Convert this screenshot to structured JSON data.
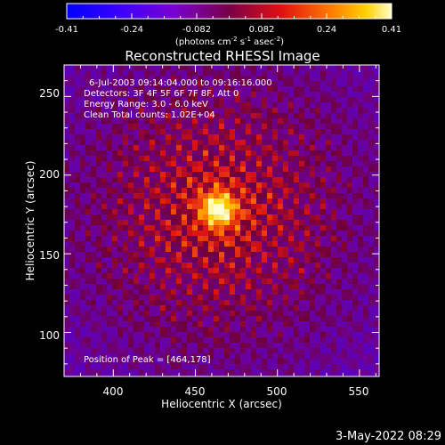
{
  "colorbar": {
    "ticks": [
      "-0.41",
      "-0.24",
      "-0.082",
      "0.082",
      "0.24",
      "0.41"
    ],
    "units_prefix": "(photons cm",
    "units_exp1": "-2",
    "units_mid": " s",
    "units_exp2": "-1",
    "units_mid2": " asec",
    "units_exp3": "-2",
    "units_suffix": ")",
    "min": -0.41,
    "max": 0.41
  },
  "image": {
    "title": "Reconstructed RHESSI Image",
    "annotations": {
      "time_range": "6-Jul-2003 09:14:04.000 to 09:16:16.000",
      "detectors": "Detectors: 3F 4F 5F 6F 7F 8F, Att 0",
      "energy_range": "Energy Range: 3.0 - 6.0 keV",
      "clean": "Clean     Total counts: 1.02E+04",
      "peak_position": "Position of Peak = [464,178]"
    },
    "x_axis": {
      "label": "Heliocentric X (arcsec)",
      "ticks": [
        "400",
        "450",
        "500",
        "550"
      ],
      "range": [
        370,
        562
      ]
    },
    "y_axis": {
      "label": "Heliocentric Y (arcsec)",
      "ticks": [
        "100",
        "150",
        "200",
        "250"
      ],
      "range": [
        72,
        270
      ]
    },
    "peak": {
      "x": 464,
      "y": 178
    }
  },
  "footer": {
    "timestamp": "3-May-2022 08:29"
  }
}
